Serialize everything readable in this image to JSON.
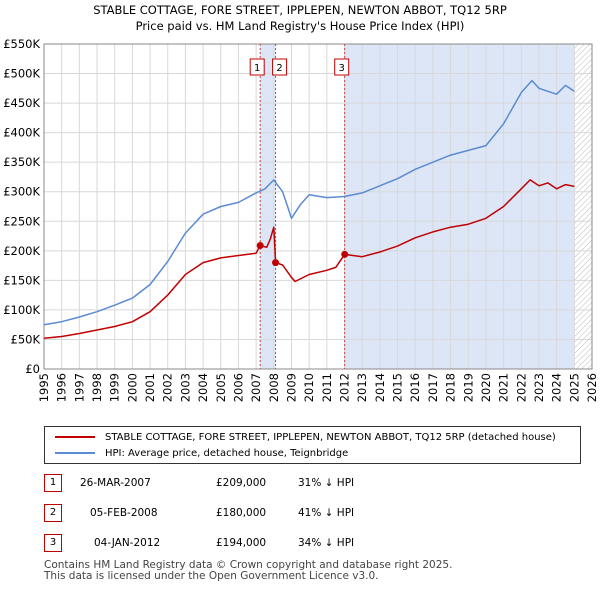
{
  "chart_data": {
    "type": "line",
    "title": "STABLE COTTAGE, FORE STREET, IPPLEPEN, NEWTON ABBOT, TQ12 5RP",
    "subtitle": "Price paid vs. HM Land Registry's House Price Index (HPI)",
    "xlabel": "",
    "ylabel": "",
    "xlim": [
      1995,
      2026
    ],
    "ylim": [
      0,
      550000
    ],
    "y_ticks": [
      0,
      50000,
      100000,
      150000,
      200000,
      250000,
      300000,
      350000,
      400000,
      450000,
      500000,
      550000
    ],
    "y_tick_labels": [
      "£0",
      "£50K",
      "£100K",
      "£150K",
      "£200K",
      "£250K",
      "£300K",
      "£350K",
      "£400K",
      "£450K",
      "£500K",
      "£550K"
    ],
    "x_ticks": [
      1995,
      1996,
      1997,
      1998,
      1999,
      2000,
      2001,
      2002,
      2003,
      2004,
      2005,
      2006,
      2007,
      2008,
      2009,
      2010,
      2011,
      2012,
      2013,
      2014,
      2015,
      2016,
      2017,
      2018,
      2019,
      2020,
      2021,
      2022,
      2023,
      2024,
      2025,
      2026
    ],
    "x_tick_labels": [
      "1995",
      "1996",
      "1997",
      "1998",
      "1999",
      "2000",
      "2001",
      "2002",
      "2003",
      "2004",
      "2005",
      "2006",
      "2007",
      "2008",
      "2009",
      "2010",
      "2011",
      "2012",
      "2013",
      "2014",
      "2015",
      "2016",
      "2017",
      "2018",
      "2019",
      "2020",
      "2021",
      "2022",
      "2023",
      "2024",
      "2025",
      "2026"
    ],
    "grid": true,
    "shaded_regions": [
      {
        "from": 2007.23,
        "to": 2008.1,
        "color": "#dce6f7"
      },
      {
        "from": 2012.01,
        "to": 2025.0,
        "color": "#dce6f7"
      },
      {
        "from": 2025.0,
        "to": 2026.0,
        "color": "#e8e8e8",
        "hatched": true
      }
    ],
    "series": [
      {
        "name": "STABLE COTTAGE, FORE STREET, IPPLEPEN, NEWTON ABBOT, TQ12 5RP (detached house)",
        "color": "#c00000",
        "x": [
          1995,
          1996,
          1997,
          1998,
          1999,
          2000,
          2001,
          2002,
          2003,
          2004,
          2005,
          2006,
          2007,
          2007.23,
          2007.6,
          2007.8,
          2008.0,
          2008.1,
          2008.5,
          2009.0,
          2009.2,
          2010,
          2011,
          2011.5,
          2012.01,
          2013,
          2014,
          2015,
          2016,
          2017,
          2018,
          2019,
          2020,
          2021,
          2022,
          2022.5,
          2023,
          2023.5,
          2024,
          2024.5,
          2025
        ],
        "values": [
          52000,
          55000,
          60000,
          66000,
          72000,
          80000,
          97000,
          125000,
          160000,
          180000,
          188000,
          192000,
          196000,
          209000,
          206000,
          220000,
          240000,
          180000,
          176000,
          155000,
          148000,
          160000,
          167000,
          172000,
          194000,
          190000,
          198000,
          208000,
          222000,
          232000,
          240000,
          245000,
          255000,
          275000,
          305000,
          320000,
          310000,
          315000,
          305000,
          312000,
          309000
        ]
      },
      {
        "name": "HPI: Average price, detached house, Teignbridge",
        "color": "#5b8bd0",
        "x": [
          1995,
          1996,
          1997,
          1998,
          1999,
          2000,
          2001,
          2002,
          2003,
          2004,
          2005,
          2006,
          2007,
          2007.5,
          2008,
          2008.5,
          2009,
          2009.5,
          2010,
          2011,
          2012,
          2013,
          2014,
          2015,
          2016,
          2017,
          2018,
          2019,
          2020,
          2021,
          2022,
          2022.6,
          2023,
          2023.5,
          2024,
          2024.5,
          2025
        ],
        "values": [
          75000,
          80000,
          88000,
          97000,
          108000,
          120000,
          143000,
          182000,
          230000,
          262000,
          275000,
          282000,
          298000,
          305000,
          320000,
          300000,
          255000,
          278000,
          295000,
          290000,
          292000,
          298000,
          310000,
          322000,
          338000,
          350000,
          362000,
          370000,
          378000,
          415000,
          468000,
          488000,
          475000,
          470000,
          465000,
          480000,
          470000
        ]
      }
    ],
    "markers": [
      {
        "label": "1",
        "x": 2007.23,
        "y": 209000
      },
      {
        "label": "2",
        "x": 2008.1,
        "y": 180000
      },
      {
        "label": "3",
        "x": 2012.01,
        "y": 194000
      }
    ],
    "legend_position": "below"
  },
  "legend": {
    "property_label": "STABLE COTTAGE, FORE STREET, IPPLEPEN, NEWTON ABBOT, TQ12 5RP (detached house)",
    "hpi_label": "HPI: Average price, detached house, Teignbridge",
    "property_color": "#c00000",
    "hpi_color": "#5b8bd0"
  },
  "transactions": [
    {
      "num": "1",
      "date": "26-MAR-2007",
      "price": "£209,000",
      "hpi": "31% ↓ HPI"
    },
    {
      "num": "2",
      "date": "05-FEB-2008",
      "price": "£180,000",
      "hpi": "41% ↓ HPI"
    },
    {
      "num": "3",
      "date": "04-JAN-2012",
      "price": "£194,000",
      "hpi": "34% ↓ HPI"
    }
  ],
  "footer": {
    "line1": "Contains HM Land Registry data © Crown copyright and database right 2025.",
    "line2": "This data is licensed under the Open Government Licence v3.0."
  }
}
